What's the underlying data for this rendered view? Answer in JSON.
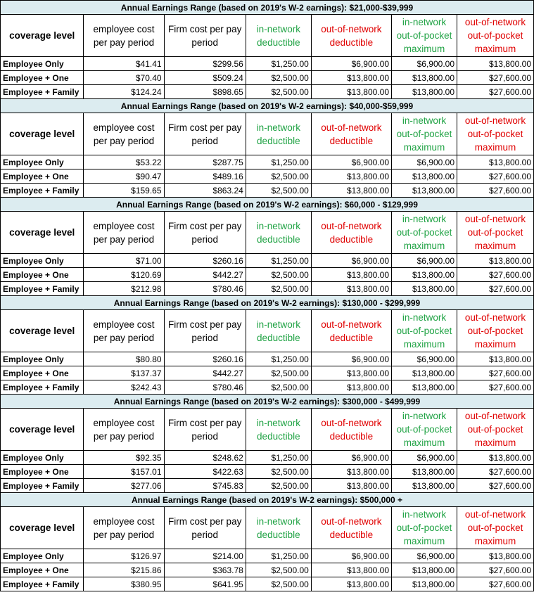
{
  "columns": [
    "coverage level",
    "employee cost per pay period",
    "Firm cost per pay period",
    "in-network deductible",
    "out-of-network deductible",
    "in-network out-of-pocket maximum",
    "out-of-network out-of-pocket maximum"
  ],
  "colors": {
    "range_bg": "#dcecf0",
    "in_network": "#21a345",
    "out_of_network": "#e00000"
  },
  "sections": [
    {
      "range": "Annual Earnings Range (based on 2019's W-2 earnings): $21,000-$39,999",
      "rows": [
        [
          "Employee Only",
          "$41.41",
          "$299.56",
          "$1,250.00",
          "$6,900.00",
          "$6,900.00",
          "$13,800.00"
        ],
        [
          "Employee + One",
          "$70.40",
          "$509.24",
          "$2,500.00",
          "$13,800.00",
          "$13,800.00",
          "$27,600.00"
        ],
        [
          "Employee + Family",
          "$124.24",
          "$898.65",
          "$2,500.00",
          "$13,800.00",
          "$13,800.00",
          "$27,600.00"
        ]
      ]
    },
    {
      "range": "Annual Earnings Range (based on 2019's W-2 earnings): $40,000-$59,999",
      "rows": [
        [
          "Employee Only",
          "$53.22",
          "$287.75",
          "$1,250.00",
          "$6,900.00",
          "$6,900.00",
          "$13,800.00"
        ],
        [
          "Employee + One",
          "$90.47",
          "$489.16",
          "$2,500.00",
          "$13,800.00",
          "$13,800.00",
          "$27,600.00"
        ],
        [
          "Employee + Family",
          "$159.65",
          "$863.24",
          "$2,500.00",
          "$13,800.00",
          "$13,800.00",
          "$27,600.00"
        ]
      ]
    },
    {
      "range": "Annual Earnings Range (based on 2019's W-2 earnings): $60,000 - $129,999",
      "rows": [
        [
          "Employee Only",
          "$71.00",
          "$260.16",
          "$1,250.00",
          "$6,900.00",
          "$6,900.00",
          "$13,800.00"
        ],
        [
          "Employee + One",
          "$120.69",
          "$442.27",
          "$2,500.00",
          "$13,800.00",
          "$13,800.00",
          "$27,600.00"
        ],
        [
          "Employee + Family",
          "$212.98",
          "$780.46",
          "$2,500.00",
          "$13,800.00",
          "$13,800.00",
          "$27,600.00"
        ]
      ]
    },
    {
      "range": "Annual Earnings Range (based on 2019's W-2 earnings): $130,000 - $299,999",
      "rows": [
        [
          "Employee Only",
          "$80.80",
          "$260.16",
          "$1,250.00",
          "$6,900.00",
          "$6,900.00",
          "$13,800.00"
        ],
        [
          "Employee + One",
          "$137.37",
          "$442.27",
          "$2,500.00",
          "$13,800.00",
          "$13,800.00",
          "$27,600.00"
        ],
        [
          "Employee + Family",
          "$242.43",
          "$780.46",
          "$2,500.00",
          "$13,800.00",
          "$13,800.00",
          "$27,600.00"
        ]
      ]
    },
    {
      "range": "Annual Earnings Range (based on 2019's W-2 earnings): $300,000 - $499,999",
      "rows": [
        [
          "Employee Only",
          "$92.35",
          "$248.62",
          "$1,250.00",
          "$6,900.00",
          "$6,900.00",
          "$13,800.00"
        ],
        [
          "Employee + One",
          "$157.01",
          "$422.63",
          "$2,500.00",
          "$13,800.00",
          "$13,800.00",
          "$27,600.00"
        ],
        [
          "Employee + Family",
          "$277.06",
          "$745.83",
          "$2,500.00",
          "$13,800.00",
          "$13,800.00",
          "$27,600.00"
        ]
      ]
    },
    {
      "range": "Annual Earnings Range (based on 2019's W-2 earnings): $500,000 +",
      "rows": [
        [
          "Employee Only",
          "$126.97",
          "$214.00",
          "$1,250.00",
          "$6,900.00",
          "$6,900.00",
          "$13,800.00"
        ],
        [
          "Employee + One",
          "$215.86",
          "$363.78",
          "$2,500.00",
          "$13,800.00",
          "$13,800.00",
          "$27,600.00"
        ],
        [
          "Employee + Family",
          "$380.95",
          "$641.95",
          "$2,500.00",
          "$13,800.00",
          "$13,800.00",
          "$27,600.00"
        ]
      ]
    }
  ]
}
